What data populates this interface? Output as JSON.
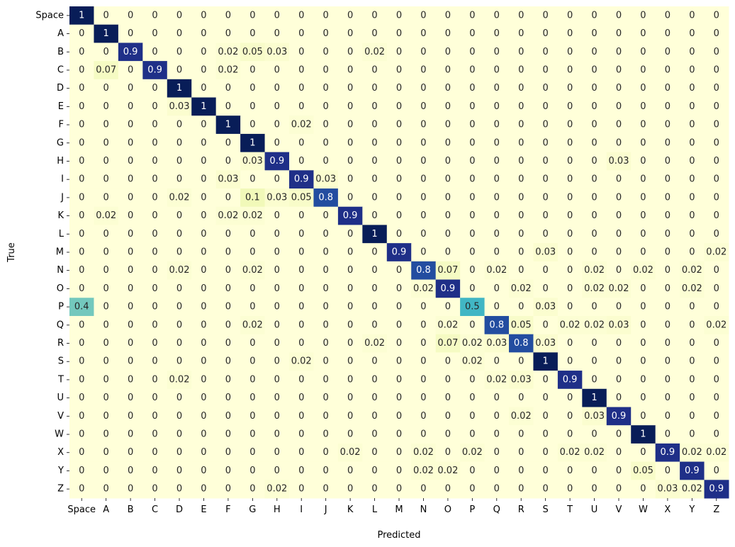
{
  "chart_data": {
    "type": "heatmap",
    "title": "",
    "xlabel": "Predicted",
    "ylabel": "True",
    "x_categories": [
      "Space",
      "A",
      "B",
      "C",
      "D",
      "E",
      "F",
      "G",
      "H",
      "I",
      "J",
      "K",
      "L",
      "M",
      "N",
      "O",
      "P",
      "Q",
      "R",
      "S",
      "T",
      "U",
      "V",
      "W",
      "X",
      "Y",
      "Z"
    ],
    "y_categories": [
      "Space",
      "A",
      "B",
      "C",
      "D",
      "E",
      "F",
      "G",
      "H",
      "I",
      "J",
      "K",
      "L",
      "M",
      "N",
      "O",
      "P",
      "Q",
      "R",
      "S",
      "T",
      "U",
      "V",
      "W",
      "X",
      "Y",
      "Z"
    ],
    "value_range": [
      0,
      1
    ],
    "colormap": "YlGnBu",
    "colorbar": false,
    "values": [
      [
        1,
        0,
        0,
        0,
        0,
        0,
        0,
        0,
        0,
        0,
        0,
        0,
        0,
        0,
        0,
        0,
        0,
        0,
        0,
        0,
        0,
        0,
        0,
        0,
        0,
        0,
        0
      ],
      [
        0,
        1,
        0,
        0,
        0,
        0,
        0,
        0,
        0,
        0,
        0,
        0,
        0,
        0,
        0,
        0,
        0,
        0,
        0,
        0,
        0,
        0,
        0,
        0,
        0,
        0,
        0
      ],
      [
        0,
        0,
        0.9,
        0,
        0,
        0,
        0.02,
        0.05,
        0.03,
        0,
        0,
        0,
        0.02,
        0,
        0,
        0,
        0,
        0,
        0,
        0,
        0,
        0,
        0,
        0,
        0,
        0,
        0
      ],
      [
        0,
        0.07,
        0,
        0.9,
        0,
        0,
        0.02,
        0,
        0,
        0,
        0,
        0,
        0,
        0,
        0,
        0,
        0,
        0,
        0,
        0,
        0,
        0,
        0,
        0,
        0,
        0,
        0
      ],
      [
        0,
        0,
        0,
        0,
        1,
        0,
        0,
        0,
        0,
        0,
        0,
        0,
        0,
        0,
        0,
        0,
        0,
        0,
        0,
        0,
        0,
        0,
        0,
        0,
        0,
        0,
        0
      ],
      [
        0,
        0,
        0,
        0,
        0.03,
        1,
        0,
        0,
        0,
        0,
        0,
        0,
        0,
        0,
        0,
        0,
        0,
        0,
        0,
        0,
        0,
        0,
        0,
        0,
        0,
        0,
        0
      ],
      [
        0,
        0,
        0,
        0,
        0,
        0,
        1,
        0,
        0,
        0.02,
        0,
        0,
        0,
        0,
        0,
        0,
        0,
        0,
        0,
        0,
        0,
        0,
        0,
        0,
        0,
        0,
        0
      ],
      [
        0,
        0,
        0,
        0,
        0,
        0,
        0,
        1,
        0,
        0,
        0,
        0,
        0,
        0,
        0,
        0,
        0,
        0,
        0,
        0,
        0,
        0,
        0,
        0,
        0,
        0,
        0
      ],
      [
        0,
        0,
        0,
        0,
        0,
        0,
        0,
        0.03,
        0.9,
        0,
        0,
        0,
        0,
        0,
        0,
        0,
        0,
        0,
        0,
        0,
        0,
        0,
        0.03,
        0,
        0,
        0,
        0
      ],
      [
        0,
        0,
        0,
        0,
        0,
        0,
        0.03,
        0,
        0,
        0.9,
        0.03,
        0,
        0,
        0,
        0,
        0,
        0,
        0,
        0,
        0,
        0,
        0,
        0,
        0,
        0,
        0,
        0
      ],
      [
        0,
        0,
        0,
        0,
        0.02,
        0,
        0,
        0.1,
        0.03,
        0.05,
        0.8,
        0,
        0,
        0,
        0,
        0,
        0,
        0,
        0,
        0,
        0,
        0,
        0,
        0,
        0,
        0,
        0
      ],
      [
        0,
        0.02,
        0,
        0,
        0,
        0,
        0.02,
        0.02,
        0,
        0,
        0,
        0.9,
        0,
        0,
        0,
        0,
        0,
        0,
        0,
        0,
        0,
        0,
        0,
        0,
        0,
        0,
        0
      ],
      [
        0,
        0,
        0,
        0,
        0,
        0,
        0,
        0,
        0,
        0,
        0,
        0,
        1,
        0,
        0,
        0,
        0,
        0,
        0,
        0,
        0,
        0,
        0,
        0,
        0,
        0,
        0
      ],
      [
        0,
        0,
        0,
        0,
        0,
        0,
        0,
        0,
        0,
        0,
        0,
        0,
        0,
        0.9,
        0,
        0,
        0,
        0,
        0,
        0.03,
        0,
        0,
        0,
        0,
        0,
        0,
        0.02
      ],
      [
        0,
        0,
        0,
        0,
        0.02,
        0,
        0,
        0.02,
        0,
        0,
        0,
        0,
        0,
        0,
        0.8,
        0.07,
        0,
        0.02,
        0,
        0,
        0,
        0.02,
        0,
        0.02,
        0,
        0.02,
        0
      ],
      [
        0,
        0,
        0,
        0,
        0,
        0,
        0,
        0,
        0,
        0,
        0,
        0,
        0,
        0,
        0.02,
        0.9,
        0,
        0,
        0.02,
        0,
        0,
        0.02,
        0.02,
        0,
        0,
        0.02,
        0
      ],
      [
        0.4,
        0,
        0,
        0,
        0,
        0,
        0,
        0,
        0,
        0,
        0,
        0,
        0,
        0,
        0,
        0,
        0.5,
        0,
        0,
        0.03,
        0,
        0,
        0,
        0,
        0,
        0,
        0
      ],
      [
        0,
        0,
        0,
        0,
        0,
        0,
        0,
        0.02,
        0,
        0,
        0,
        0,
        0,
        0,
        0,
        0.02,
        0,
        0.8,
        0.05,
        0,
        0.02,
        0.02,
        0.03,
        0,
        0,
        0,
        0.02
      ],
      [
        0,
        0,
        0,
        0,
        0,
        0,
        0,
        0,
        0,
        0,
        0,
        0,
        0.02,
        0,
        0,
        0.07,
        0.02,
        0.03,
        0.8,
        0.03,
        0,
        0,
        0,
        0,
        0,
        0,
        0
      ],
      [
        0,
        0,
        0,
        0,
        0,
        0,
        0,
        0,
        0,
        0.02,
        0,
        0,
        0,
        0,
        0,
        0,
        0.02,
        0,
        0,
        1,
        0,
        0,
        0,
        0,
        0,
        0,
        0
      ],
      [
        0,
        0,
        0,
        0,
        0.02,
        0,
        0,
        0,
        0,
        0,
        0,
        0,
        0,
        0,
        0,
        0,
        0,
        0.02,
        0.03,
        0,
        0.9,
        0,
        0,
        0,
        0,
        0,
        0
      ],
      [
        0,
        0,
        0,
        0,
        0,
        0,
        0,
        0,
        0,
        0,
        0,
        0,
        0,
        0,
        0,
        0,
        0,
        0,
        0,
        0,
        0,
        1,
        0,
        0,
        0,
        0,
        0
      ],
      [
        0,
        0,
        0,
        0,
        0,
        0,
        0,
        0,
        0,
        0,
        0,
        0,
        0,
        0,
        0,
        0,
        0,
        0,
        0.02,
        0,
        0,
        0.03,
        0.9,
        0,
        0,
        0,
        0
      ],
      [
        0,
        0,
        0,
        0,
        0,
        0,
        0,
        0,
        0,
        0,
        0,
        0,
        0,
        0,
        0,
        0,
        0,
        0,
        0,
        0,
        0,
        0,
        0,
        1,
        0,
        0,
        0
      ],
      [
        0,
        0,
        0,
        0,
        0,
        0,
        0,
        0,
        0,
        0,
        0,
        0.02,
        0,
        0,
        0.02,
        0,
        0.02,
        0,
        0,
        0,
        0.02,
        0.02,
        0,
        0,
        0.9,
        0.02,
        0.02
      ],
      [
        0,
        0,
        0,
        0,
        0,
        0,
        0,
        0,
        0,
        0,
        0,
        0,
        0,
        0,
        0.02,
        0.02,
        0,
        0,
        0,
        0,
        0,
        0,
        0,
        0.05,
        0,
        0.9,
        0
      ],
      [
        0,
        0,
        0,
        0,
        0,
        0,
        0,
        0,
        0.02,
        0,
        0,
        0,
        0,
        0,
        0,
        0,
        0,
        0,
        0,
        0,
        0,
        0,
        0,
        0,
        0.03,
        0.02,
        0.9
      ]
    ]
  }
}
